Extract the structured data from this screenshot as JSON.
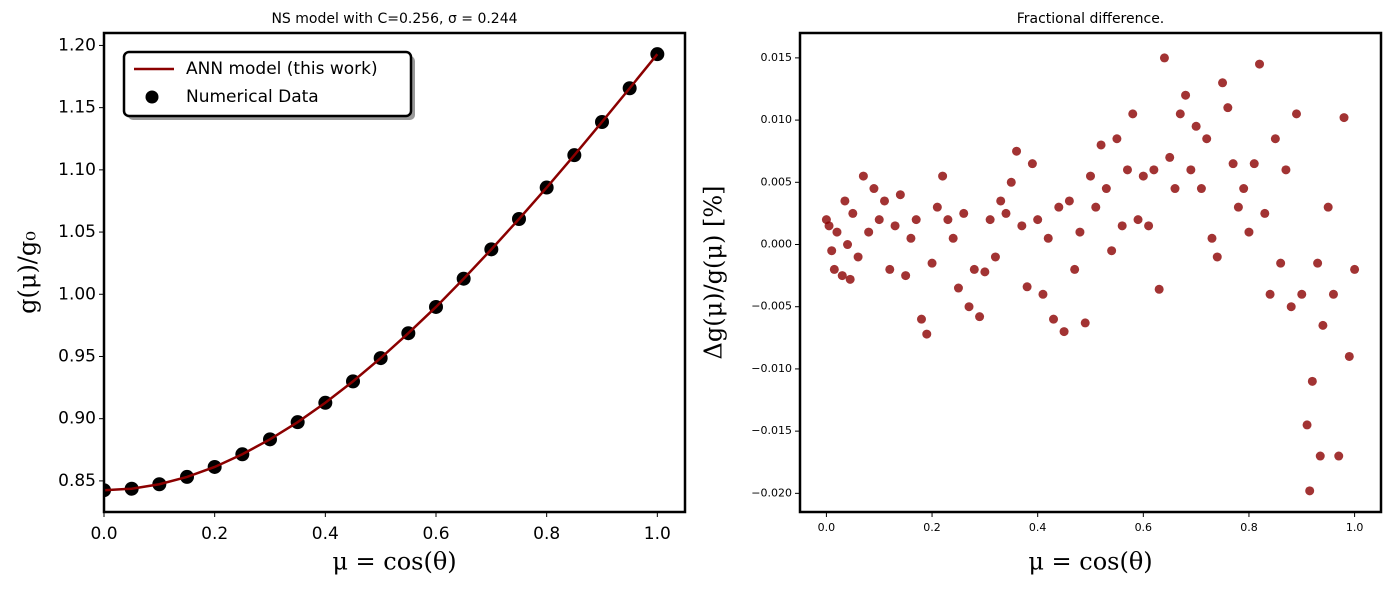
{
  "chart_data": [
    {
      "type": "line",
      "title": "NS model with C=0.256, σ = 0.244",
      "xlabel": "μ = cos(θ)",
      "ylabel": "g(μ)/g₀",
      "x": [
        0,
        0.05,
        0.1,
        0.15,
        0.2,
        0.25,
        0.3,
        0.35,
        0.4,
        0.45,
        0.5,
        0.55,
        0.6,
        0.65,
        0.7,
        0.75,
        0.8,
        0.85,
        0.9,
        0.95,
        1.0
      ],
      "series": [
        {
          "name": "Numerical Data",
          "kind": "scatter",
          "color": "#000000",
          "values": [
            0.8425,
            0.8437,
            0.8473,
            0.8532,
            0.8612,
            0.8714,
            0.8834,
            0.8972,
            0.9128,
            0.93,
            0.9487,
            0.9687,
            0.9898,
            1.0125,
            1.0361,
            1.0605,
            1.0858,
            1.1118,
            1.1385,
            1.1656,
            1.193
          ]
        },
        {
          "name": "ANN model (this work)",
          "kind": "line",
          "color": "#8b0000",
          "values": [
            0.8425,
            0.8437,
            0.8473,
            0.8532,
            0.8612,
            0.8714,
            0.8834,
            0.8972,
            0.9128,
            0.93,
            0.9487,
            0.9687,
            0.9898,
            1.0125,
            1.0361,
            1.0605,
            1.0858,
            1.1118,
            1.1385,
            1.1656,
            1.193
          ]
        }
      ],
      "xlim": [
        0,
        1.05
      ],
      "ylim": [
        0.825,
        1.21
      ],
      "xticks": [
        {
          "value": 0,
          "label": "0.0"
        },
        0.2,
        0.4,
        0.6,
        0.8,
        {
          "value": 1,
          "label": "1.0"
        }
      ],
      "yticks": [
        0.85,
        {
          "value": 0.9,
          "label": "0.90"
        },
        0.95,
        {
          "value": 1.0,
          "label": "1.00"
        },
        1.05,
        {
          "value": 1.1,
          "label": "1.10"
        },
        1.15,
        {
          "value": 1.2,
          "label": "1.20"
        }
      ],
      "legend": "upper left",
      "grid": false
    },
    {
      "type": "scatter",
      "title": "Fractional difference.",
      "xlabel": "μ = cos(θ)",
      "ylabel": "Δg(μ)/g(μ)  [%]",
      "color": "#8b0000",
      "x": [
        0.0,
        0.005,
        0.01,
        0.015,
        0.02,
        0.03,
        0.035,
        0.04,
        0.045,
        0.05,
        0.06,
        0.07,
        0.08,
        0.09,
        0.1,
        0.11,
        0.12,
        0.13,
        0.14,
        0.15,
        0.16,
        0.17,
        0.18,
        0.19,
        0.2,
        0.21,
        0.22,
        0.23,
        0.24,
        0.25,
        0.26,
        0.27,
        0.28,
        0.29,
        0.3,
        0.31,
        0.32,
        0.33,
        0.34,
        0.35,
        0.36,
        0.37,
        0.38,
        0.39,
        0.4,
        0.41,
        0.42,
        0.43,
        0.44,
        0.45,
        0.46,
        0.47,
        0.48,
        0.49,
        0.5,
        0.51,
        0.52,
        0.53,
        0.54,
        0.55,
        0.56,
        0.57,
        0.58,
        0.59,
        0.6,
        0.61,
        0.62,
        0.63,
        0.64,
        0.65,
        0.66,
        0.67,
        0.68,
        0.69,
        0.7,
        0.71,
        0.72,
        0.73,
        0.74,
        0.75,
        0.76,
        0.77,
        0.78,
        0.79,
        0.8,
        0.81,
        0.82,
        0.83,
        0.84,
        0.85,
        0.86,
        0.87,
        0.88,
        0.89,
        0.9,
        0.91,
        0.92,
        0.93,
        0.94,
        0.95,
        0.96,
        0.97,
        0.98,
        0.99,
        1.0,
        0.915,
        0.935
      ],
      "values": [
        0.002,
        0.0015,
        -0.0005,
        -0.002,
        0.001,
        -0.0025,
        0.0035,
        0.0,
        -0.0028,
        0.0025,
        -0.001,
        0.0055,
        0.001,
        0.0045,
        0.002,
        0.0035,
        -0.002,
        0.0015,
        0.004,
        -0.0025,
        0.0005,
        0.002,
        -0.006,
        -0.0072,
        -0.0015,
        0.003,
        0.0055,
        0.002,
        0.0005,
        -0.0035,
        0.0025,
        -0.005,
        -0.002,
        -0.0058,
        -0.0022,
        0.002,
        -0.001,
        0.0035,
        0.0025,
        0.005,
        0.0075,
        0.0015,
        -0.0034,
        0.0065,
        0.002,
        -0.004,
        0.0005,
        -0.006,
        0.003,
        -0.007,
        0.0035,
        -0.002,
        0.001,
        -0.0063,
        0.0055,
        0.003,
        0.008,
        0.0045,
        -0.0005,
        0.0085,
        0.0015,
        0.006,
        0.0105,
        0.002,
        0.0055,
        0.0015,
        0.006,
        -0.0036,
        0.015,
        0.007,
        0.0045,
        0.0105,
        0.012,
        0.006,
        0.0095,
        0.0045,
        0.0085,
        0.0005,
        -0.001,
        0.013,
        0.011,
        0.0065,
        0.003,
        0.0045,
        0.001,
        0.0065,
        0.0145,
        0.0025,
        -0.004,
        0.0085,
        -0.0015,
        0.006,
        -0.005,
        0.0105,
        -0.004,
        -0.0145,
        -0.011,
        -0.0015,
        -0.0065,
        0.003,
        -0.004,
        -0.017,
        0.0102,
        -0.009,
        -0.002,
        -0.0198,
        -0.017
      ],
      "xlim": [
        -0.05,
        1.05
      ],
      "ylim": [
        -0.0215,
        0.017
      ],
      "xticks": [
        {
          "value": 0,
          "label": "0.0"
        },
        0.2,
        0.4,
        0.6,
        0.8,
        {
          "value": 1,
          "label": "1.0"
        }
      ],
      "yticks": [
        {
          "value": -0.02,
          "label": "−0.020"
        },
        {
          "value": -0.015,
          "label": "−0.015"
        },
        {
          "value": -0.01,
          "label": "−0.010"
        },
        {
          "value": -0.005,
          "label": "−0.005"
        },
        {
          "value": 0,
          "label": "0.000"
        },
        {
          "value": 0.005,
          "label": "0.005"
        },
        {
          "value": 0.01,
          "label": "0.010"
        },
        {
          "value": 0.015,
          "label": "0.015"
        }
      ],
      "grid": false
    }
  ]
}
